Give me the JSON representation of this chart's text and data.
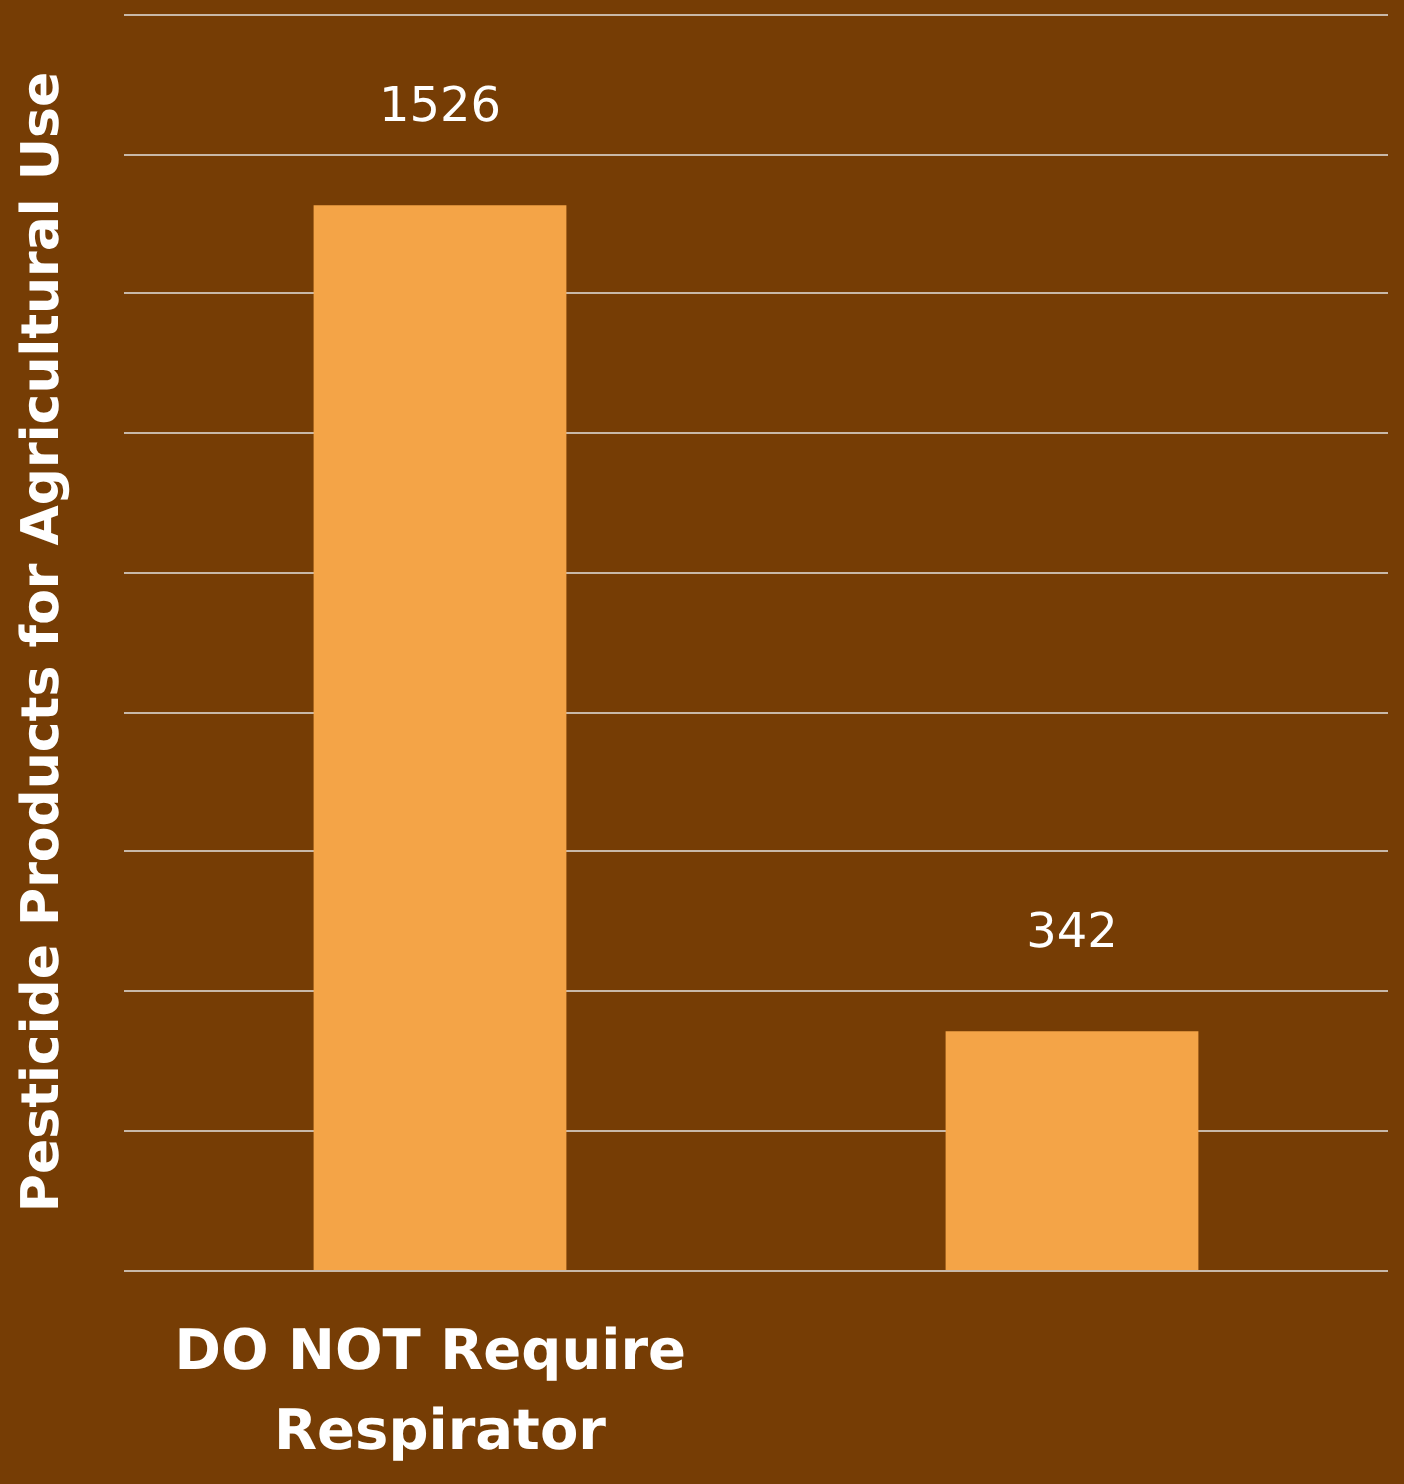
{
  "chart_data": {
    "type": "bar",
    "ylabel": "Pesticide Products for Agricultural Use",
    "categories": [
      "DO NOT Require Respirator",
      null
    ],
    "values": [
      1526,
      342
    ],
    "color": "#f4a447",
    "ylim": [
      0,
      1800
    ],
    "yticks": [
      {
        "value": 0,
        "label": null
      },
      {
        "value": 200,
        "label": null
      },
      {
        "value": 400,
        "label": null
      },
      {
        "value": 600,
        "label": null
      },
      {
        "value": 800,
        "label": null
      },
      {
        "value": 1000,
        "label": null
      },
      {
        "value": 1200,
        "label": null
      },
      {
        "value": 1400,
        "label": null
      },
      {
        "value": 1600,
        "label": null
      },
      {
        "value": 1800,
        "label": null
      }
    ],
    "grid": "y",
    "tick_labels": "x",
    "data_labels": true
  }
}
